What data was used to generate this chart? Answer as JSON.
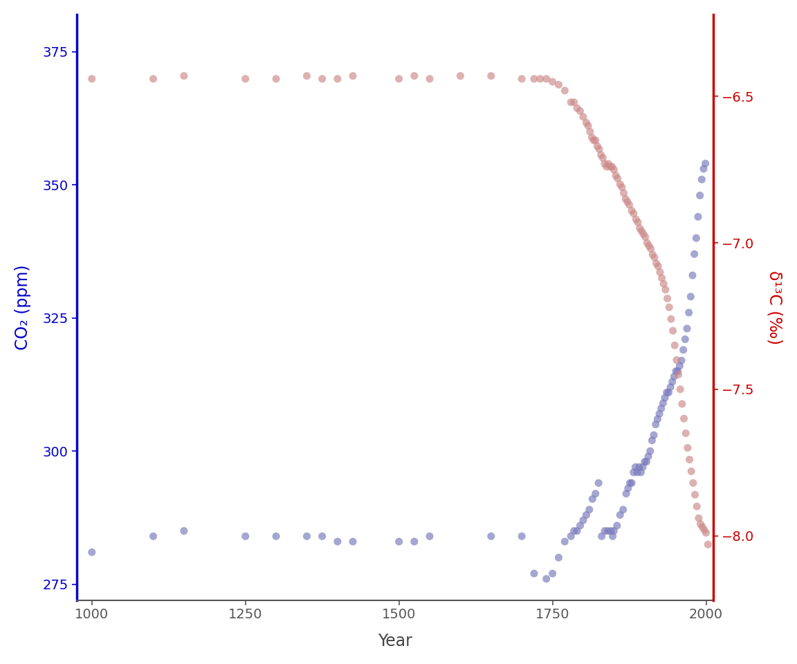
{
  "co2_data": [
    [
      1000,
      281
    ],
    [
      1100,
      284
    ],
    [
      1150,
      285
    ],
    [
      1250,
      284
    ],
    [
      1300,
      284
    ],
    [
      1350,
      284
    ],
    [
      1375,
      284
    ],
    [
      1400,
      283
    ],
    [
      1425,
      283
    ],
    [
      1500,
      283
    ],
    [
      1525,
      283
    ],
    [
      1550,
      284
    ],
    [
      1650,
      284
    ],
    [
      1700,
      284
    ],
    [
      1720,
      277
    ],
    [
      1740,
      276
    ],
    [
      1750,
      277
    ],
    [
      1760,
      280
    ],
    [
      1770,
      283
    ],
    [
      1780,
      284
    ],
    [
      1785,
      285
    ],
    [
      1790,
      285
    ],
    [
      1795,
      286
    ],
    [
      1800,
      287
    ],
    [
      1805,
      288
    ],
    [
      1810,
      289
    ],
    [
      1815,
      291
    ],
    [
      1820,
      292
    ],
    [
      1825,
      294
    ],
    [
      1830,
      284
    ],
    [
      1835,
      285
    ],
    [
      1840,
      285
    ],
    [
      1845,
      285
    ],
    [
      1848,
      284
    ],
    [
      1850,
      285
    ],
    [
      1855,
      286
    ],
    [
      1860,
      288
    ],
    [
      1865,
      289
    ],
    [
      1870,
      292
    ],
    [
      1873,
      293
    ],
    [
      1876,
      294
    ],
    [
      1879,
      294
    ],
    [
      1882,
      296
    ],
    [
      1885,
      297
    ],
    [
      1888,
      296
    ],
    [
      1891,
      297
    ],
    [
      1894,
      296
    ],
    [
      1897,
      297
    ],
    [
      1900,
      298
    ],
    [
      1903,
      298
    ],
    [
      1906,
      299
    ],
    [
      1909,
      300
    ],
    [
      1912,
      302
    ],
    [
      1915,
      303
    ],
    [
      1918,
      305
    ],
    [
      1921,
      306
    ],
    [
      1924,
      307
    ],
    [
      1927,
      308
    ],
    [
      1930,
      309
    ],
    [
      1933,
      310
    ],
    [
      1936,
      311
    ],
    [
      1939,
      311
    ],
    [
      1942,
      312
    ],
    [
      1945,
      313
    ],
    [
      1948,
      314
    ],
    [
      1951,
      315
    ],
    [
      1954,
      315
    ],
    [
      1957,
      316
    ],
    [
      1960,
      317
    ],
    [
      1963,
      319
    ],
    [
      1966,
      321
    ],
    [
      1969,
      323
    ],
    [
      1972,
      326
    ],
    [
      1975,
      329
    ],
    [
      1978,
      333
    ],
    [
      1981,
      337
    ],
    [
      1984,
      340
    ],
    [
      1987,
      344
    ],
    [
      1990,
      348
    ],
    [
      1993,
      351
    ],
    [
      1996,
      353
    ],
    [
      1999,
      354
    ]
  ],
  "d13c_data": [
    [
      1000,
      -6.44
    ],
    [
      1100,
      -6.44
    ],
    [
      1150,
      -6.43
    ],
    [
      1250,
      -6.44
    ],
    [
      1300,
      -6.44
    ],
    [
      1350,
      -6.43
    ],
    [
      1375,
      -6.44
    ],
    [
      1400,
      -6.44
    ],
    [
      1425,
      -6.43
    ],
    [
      1500,
      -6.44
    ],
    [
      1525,
      -6.43
    ],
    [
      1550,
      -6.44
    ],
    [
      1600,
      -6.43
    ],
    [
      1650,
      -6.43
    ],
    [
      1700,
      -6.44
    ],
    [
      1720,
      -6.44
    ],
    [
      1730,
      -6.44
    ],
    [
      1740,
      -6.44
    ],
    [
      1750,
      -6.45
    ],
    [
      1760,
      -6.46
    ],
    [
      1770,
      -6.48
    ],
    [
      1780,
      -6.52
    ],
    [
      1785,
      -6.52
    ],
    [
      1790,
      -6.54
    ],
    [
      1795,
      -6.55
    ],
    [
      1800,
      -6.57
    ],
    [
      1805,
      -6.59
    ],
    [
      1808,
      -6.6
    ],
    [
      1811,
      -6.62
    ],
    [
      1814,
      -6.64
    ],
    [
      1817,
      -6.65
    ],
    [
      1820,
      -6.65
    ],
    [
      1823,
      -6.67
    ],
    [
      1826,
      -6.68
    ],
    [
      1829,
      -6.7
    ],
    [
      1832,
      -6.71
    ],
    [
      1835,
      -6.73
    ],
    [
      1838,
      -6.74
    ],
    [
      1841,
      -6.73
    ],
    [
      1844,
      -6.74
    ],
    [
      1847,
      -6.74
    ],
    [
      1850,
      -6.75
    ],
    [
      1853,
      -6.77
    ],
    [
      1856,
      -6.78
    ],
    [
      1860,
      -6.8
    ],
    [
      1863,
      -6.81
    ],
    [
      1866,
      -6.83
    ],
    [
      1869,
      -6.85
    ],
    [
      1872,
      -6.86
    ],
    [
      1875,
      -6.87
    ],
    [
      1879,
      -6.89
    ],
    [
      1882,
      -6.9
    ],
    [
      1886,
      -6.92
    ],
    [
      1889,
      -6.93
    ],
    [
      1892,
      -6.95
    ],
    [
      1895,
      -6.96
    ],
    [
      1898,
      -6.97
    ],
    [
      1901,
      -6.98
    ],
    [
      1904,
      -7.0
    ],
    [
      1907,
      -7.01
    ],
    [
      1910,
      -7.02
    ],
    [
      1913,
      -7.04
    ],
    [
      1916,
      -7.05
    ],
    [
      1919,
      -7.07
    ],
    [
      1922,
      -7.08
    ],
    [
      1925,
      -7.1
    ],
    [
      1928,
      -7.12
    ],
    [
      1931,
      -7.14
    ],
    [
      1934,
      -7.16
    ],
    [
      1937,
      -7.19
    ],
    [
      1940,
      -7.22
    ],
    [
      1943,
      -7.26
    ],
    [
      1946,
      -7.3
    ],
    [
      1949,
      -7.35
    ],
    [
      1952,
      -7.4
    ],
    [
      1955,
      -7.45
    ],
    [
      1958,
      -7.5
    ],
    [
      1961,
      -7.55
    ],
    [
      1964,
      -7.6
    ],
    [
      1967,
      -7.65
    ],
    [
      1970,
      -7.7
    ],
    [
      1973,
      -7.74
    ],
    [
      1976,
      -7.78
    ],
    [
      1979,
      -7.82
    ],
    [
      1982,
      -7.86
    ],
    [
      1985,
      -7.9
    ],
    [
      1988,
      -7.94
    ],
    [
      1991,
      -7.96
    ],
    [
      1994,
      -7.97
    ],
    [
      1997,
      -7.98
    ],
    [
      2000,
      -7.99
    ],
    [
      2003,
      -8.03
    ]
  ],
  "co2_color": "#7777BB",
  "d13c_color": "#CC8888",
  "co2_alpha": 0.65,
  "d13c_alpha": 0.65,
  "co2_ylim": [
    272,
    382
  ],
  "d13c_ylim": [
    -8.22,
    -6.22
  ],
  "xlim": [
    975,
    2012
  ],
  "co2_yticks": [
    275,
    300,
    325,
    350,
    375
  ],
  "d13c_yticks": [
    -8.0,
    -7.5,
    -7.0,
    -6.5
  ],
  "xticks": [
    1000,
    1250,
    1500,
    1750,
    2000
  ],
  "xlabel": "Year",
  "ylabel_left": "CO₂ (ppm)",
  "ylabel_right": "δ¹³C (‰)",
  "left_axis_color": "#0000CC",
  "right_axis_color": "#CC0000",
  "marker_size": 8,
  "background_color": "#FFFFFF",
  "label_fontsize": 17,
  "tick_fontsize": 14
}
